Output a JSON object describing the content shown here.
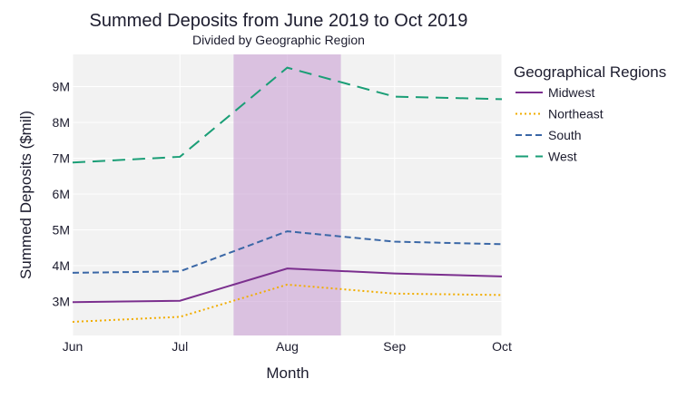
{
  "chart_data": {
    "type": "line",
    "title": "Summed Deposits from June 2019 to Oct 2019",
    "subtitle": "Divided by Geographic Region",
    "xlabel": "Month",
    "ylabel": "Summed Deposits ($mil)",
    "categories": [
      "Jun",
      "Jul",
      "Aug",
      "Sep",
      "Oct"
    ],
    "y_ticks": [
      3,
      4,
      5,
      6,
      7,
      8,
      9
    ],
    "y_tick_labels": [
      "3M",
      "4M",
      "5M",
      "6M",
      "7M",
      "8M",
      "9M"
    ],
    "ylim": [
      2.05,
      9.9
    ],
    "grid": true,
    "legend_title": "Geographical Regions",
    "legend_position": "right",
    "highlight": {
      "from": "Jul",
      "to": "Aug",
      "x_from": 1.5,
      "x_to": 2.5,
      "color": "#c9a0d4"
    },
    "series": [
      {
        "name": "Midwest",
        "values": [
          2.98,
          3.02,
          3.92,
          3.78,
          3.7
        ],
        "color": "#7b2f8e",
        "dash": "solid"
      },
      {
        "name": "Northeast",
        "values": [
          2.43,
          2.57,
          3.47,
          3.22,
          3.18
        ],
        "color": "#f1ad00",
        "dash": "dot"
      },
      {
        "name": "South",
        "values": [
          3.8,
          3.84,
          4.96,
          4.67,
          4.6
        ],
        "color": "#3a67a6",
        "dash": "dash"
      },
      {
        "name": "West",
        "values": [
          6.88,
          7.04,
          9.53,
          8.72,
          8.65
        ],
        "color": "#1a9e76",
        "dash": "longdash"
      }
    ]
  }
}
